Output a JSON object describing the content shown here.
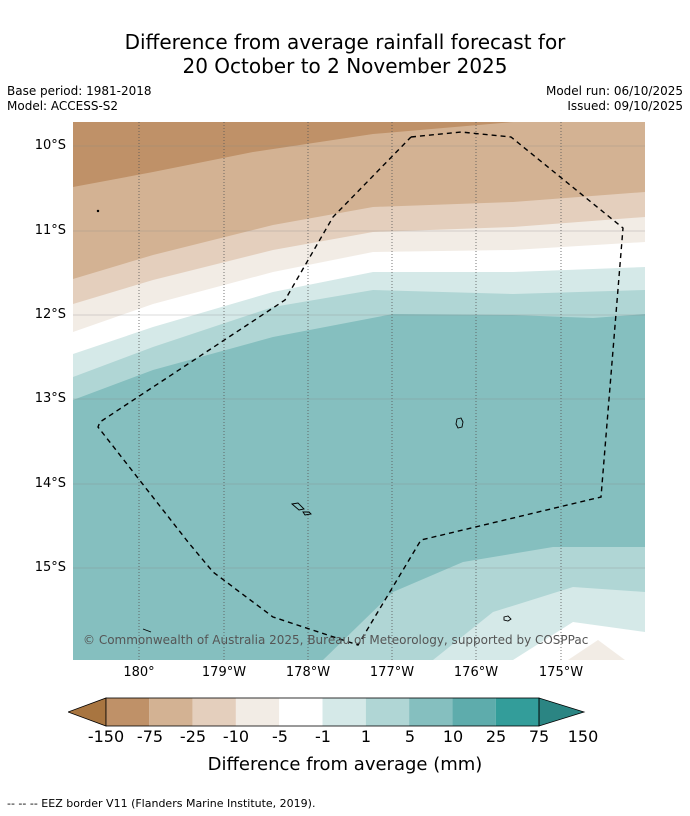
{
  "title_line1": "Difference from average rainfall forecast for",
  "title_line2": "20 October to 2 November 2025",
  "base_period": "Base period: 1981-2018",
  "model": "Model: ACCESS-S2",
  "model_run": "Model run: 06/10/2025",
  "issued": "Issued: 09/10/2025",
  "lat_labels": [
    "10°S",
    "11°S",
    "12°S",
    "13°S",
    "14°S",
    "15°S"
  ],
  "lon_labels": [
    "180°",
    "179°W",
    "178°W",
    "177°W",
    "176°W",
    "175°W"
  ],
  "copyright": "© Commonwealth of Australia 2025, Bureau of Meteorology, supported by COSPPac",
  "colorbar": {
    "ticks": [
      "-150",
      "-75",
      "-25",
      "-10",
      "-5",
      "-1",
      "1",
      "5",
      "10",
      "25",
      "75",
      "150"
    ],
    "colors": [
      "#a87540",
      "#bf9168",
      "#d3b293",
      "#e4cfbd",
      "#f2ece5",
      "#ffffff",
      "#d5e9e8",
      "#b0d6d5",
      "#85bfbf",
      "#5eacac",
      "#339d9a",
      "#2b8583"
    ],
    "title": "Difference from average (mm)"
  },
  "footnote": "--  --  -- EEZ border V11 (Flanders Marine Institute, 2019)."
}
